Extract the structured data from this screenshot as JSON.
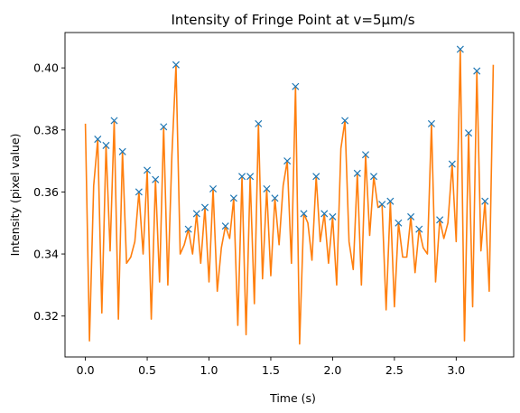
{
  "chart_data": {
    "type": "line",
    "title": "Intensity of Fringe Point at v=5μm/s",
    "xlabel": "Time (s)",
    "ylabel": "Intensity (pixel value)",
    "xlim": [
      -0.165,
      3.465
    ],
    "ylim": [
      0.3068,
      0.4114
    ],
    "xticks": [
      0.0,
      0.5,
      1.0,
      1.5,
      2.0,
      2.5,
      3.0
    ],
    "xtick_labels": [
      "0.0",
      "0.5",
      "1.0",
      "1.5",
      "2.0",
      "2.5",
      "3.0"
    ],
    "yticks": [
      0.32,
      0.34,
      0.36,
      0.38,
      0.4
    ],
    "ytick_labels": [
      "0.32",
      "0.34",
      "0.36",
      "0.38",
      "0.40"
    ],
    "grid": false,
    "legend": "none",
    "colors": {
      "signal": "#ff7f0e",
      "peaks": "#1f77b4"
    },
    "series": [
      {
        "kind": "line",
        "x": [
          0.0,
          0.033,
          0.067,
          0.1,
          0.133,
          0.167,
          0.2,
          0.233,
          0.267,
          0.3,
          0.333,
          0.367,
          0.4,
          0.433,
          0.467,
          0.5,
          0.533,
          0.567,
          0.6,
          0.633,
          0.667,
          0.7,
          0.733,
          0.767,
          0.8,
          0.833,
          0.867,
          0.9,
          0.933,
          0.967,
          1.0,
          1.033,
          1.067,
          1.1,
          1.133,
          1.167,
          1.2,
          1.233,
          1.267,
          1.3,
          1.333,
          1.367,
          1.4,
          1.433,
          1.467,
          1.5,
          1.533,
          1.567,
          1.6,
          1.633,
          1.667,
          1.7,
          1.733,
          1.767,
          1.8,
          1.833,
          1.867,
          1.9,
          1.933,
          1.967,
          2.0,
          2.033,
          2.067,
          2.1,
          2.133,
          2.167,
          2.2,
          2.233,
          2.267,
          2.3,
          2.333,
          2.367,
          2.4,
          2.433,
          2.467,
          2.5,
          2.533,
          2.567,
          2.6,
          2.633,
          2.667,
          2.7,
          2.733,
          2.767,
          2.8,
          2.833,
          2.867,
          2.9,
          2.933,
          2.967,
          3.0,
          3.033,
          3.067,
          3.1,
          3.133,
          3.167,
          3.2,
          3.233,
          3.267,
          3.3
        ],
        "y": [
          0.382,
          0.312,
          0.362,
          0.377,
          0.321,
          0.375,
          0.341,
          0.383,
          0.319,
          0.373,
          0.337,
          0.339,
          0.344,
          0.36,
          0.34,
          0.367,
          0.319,
          0.364,
          0.331,
          0.381,
          0.33,
          0.372,
          0.401,
          0.34,
          0.343,
          0.348,
          0.34,
          0.353,
          0.337,
          0.355,
          0.331,
          0.361,
          0.328,
          0.342,
          0.349,
          0.345,
          0.358,
          0.317,
          0.365,
          0.314,
          0.365,
          0.324,
          0.382,
          0.332,
          0.361,
          0.333,
          0.358,
          0.343,
          0.362,
          0.37,
          0.337,
          0.394,
          0.311,
          0.353,
          0.35,
          0.338,
          0.365,
          0.344,
          0.353,
          0.337,
          0.352,
          0.33,
          0.374,
          0.383,
          0.344,
          0.335,
          0.366,
          0.33,
          0.372,
          0.346,
          0.365,
          0.355,
          0.356,
          0.322,
          0.357,
          0.323,
          0.35,
          0.339,
          0.339,
          0.352,
          0.334,
          0.348,
          0.342,
          0.34,
          0.382,
          0.331,
          0.351,
          0.345,
          0.35,
          0.369,
          0.344,
          0.406,
          0.312,
          0.379,
          0.323,
          0.399,
          0.341,
          0.357,
          0.328,
          0.401
        ]
      },
      {
        "kind": "markers",
        "marker": "x",
        "x": [
          0.1,
          0.167,
          0.233,
          0.3,
          0.433,
          0.5,
          0.567,
          0.633,
          0.733,
          0.833,
          0.9,
          0.967,
          1.033,
          1.133,
          1.2,
          1.267,
          1.333,
          1.4,
          1.467,
          1.533,
          1.633,
          1.7,
          1.767,
          1.867,
          1.933,
          2.0,
          2.1,
          2.2,
          2.267,
          2.333,
          2.4,
          2.467,
          2.533,
          2.633,
          2.7,
          2.8,
          2.867,
          2.967,
          3.033,
          3.1,
          3.167,
          3.233
        ],
        "y": [
          0.377,
          0.375,
          0.383,
          0.373,
          0.36,
          0.367,
          0.364,
          0.381,
          0.401,
          0.348,
          0.353,
          0.355,
          0.361,
          0.349,
          0.358,
          0.365,
          0.365,
          0.382,
          0.361,
          0.358,
          0.37,
          0.394,
          0.353,
          0.365,
          0.353,
          0.352,
          0.383,
          0.366,
          0.372,
          0.365,
          0.356,
          0.357,
          0.35,
          0.352,
          0.348,
          0.382,
          0.351,
          0.369,
          0.406,
          0.379,
          0.399,
          0.357
        ]
      }
    ]
  }
}
